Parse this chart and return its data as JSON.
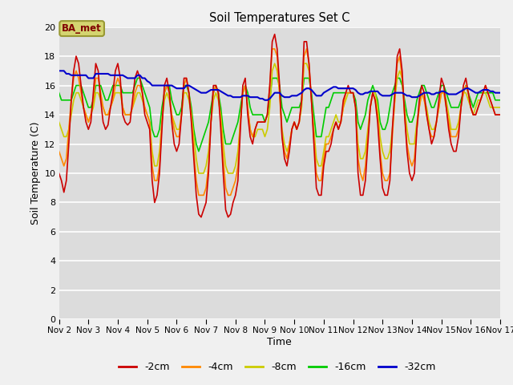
{
  "title": "Soil Temperatures Set C",
  "xlabel": "Time",
  "ylabel": "Soil Temperature (C)",
  "ylim": [
    0,
    20
  ],
  "yticks": [
    0,
    2,
    4,
    6,
    8,
    10,
    12,
    14,
    16,
    18,
    20
  ],
  "x_labels": [
    "Nov 2",
    "Nov 3",
    "Nov 4",
    "Nov 5",
    "Nov 6",
    "Nov 7",
    "Nov 8",
    "Nov 9",
    "Nov 10",
    "Nov 11",
    "Nov 12",
    "Nov 13",
    "Nov 14",
    "Nov 15",
    "Nov 16",
    "Nov 17"
  ],
  "annotation_text": "BA_met",
  "colors": {
    "-2cm": "#cc0000",
    "-4cm": "#ff8800",
    "-8cm": "#cccc00",
    "-16cm": "#00cc00",
    "-32cm": "#0000cc"
  },
  "figure_bg": "#f0f0f0",
  "axes_bg": "#dcdcdc",
  "grid_color": "#ffffff",
  "legend_labels": [
    "-2cm",
    "-4cm",
    "-8cm",
    "-16cm",
    "-32cm"
  ],
  "data": {
    "x": [
      2.0,
      2.083,
      2.167,
      2.25,
      2.333,
      2.417,
      2.5,
      2.583,
      2.667,
      2.75,
      2.833,
      2.917,
      3.0,
      3.083,
      3.167,
      3.25,
      3.333,
      3.417,
      3.5,
      3.583,
      3.667,
      3.75,
      3.833,
      3.917,
      4.0,
      4.083,
      4.167,
      4.25,
      4.333,
      4.417,
      4.5,
      4.583,
      4.667,
      4.75,
      4.833,
      4.917,
      5.0,
      5.083,
      5.167,
      5.25,
      5.333,
      5.417,
      5.5,
      5.583,
      5.667,
      5.75,
      5.833,
      5.917,
      6.0,
      6.083,
      6.167,
      6.25,
      6.333,
      6.417,
      6.5,
      6.583,
      6.667,
      6.75,
      6.833,
      6.917,
      7.0,
      7.083,
      7.167,
      7.25,
      7.333,
      7.417,
      7.5,
      7.583,
      7.667,
      7.75,
      7.833,
      7.917,
      8.0,
      8.083,
      8.167,
      8.25,
      8.333,
      8.417,
      8.5,
      8.583,
      8.667,
      8.75,
      8.833,
      8.917,
      9.0,
      9.083,
      9.167,
      9.25,
      9.333,
      9.417,
      9.5,
      9.583,
      9.667,
      9.75,
      9.833,
      9.917,
      10.0,
      10.083,
      10.167,
      10.25,
      10.333,
      10.417,
      10.5,
      10.583,
      10.667,
      10.75,
      10.833,
      10.917,
      11.0,
      11.083,
      11.167,
      11.25,
      11.333,
      11.417,
      11.5,
      11.583,
      11.667,
      11.75,
      11.833,
      11.917,
      12.0,
      12.083,
      12.167,
      12.25,
      12.333,
      12.417,
      12.5,
      12.583,
      12.667,
      12.75,
      12.833,
      12.917,
      13.0,
      13.083,
      13.167,
      13.25,
      13.333,
      13.417,
      13.5,
      13.583,
      13.667,
      13.75,
      13.833,
      13.917,
      14.0,
      14.083,
      14.167,
      14.25,
      14.333,
      14.417,
      14.5,
      14.583,
      14.667,
      14.75,
      14.833,
      14.917,
      15.0,
      15.083,
      15.167,
      15.25,
      15.333,
      15.417,
      15.5,
      15.583,
      15.667,
      15.75,
      15.833,
      15.917,
      16.0,
      16.083,
      16.167,
      16.25,
      16.333,
      16.417,
      16.5,
      16.583,
      16.667,
      16.75,
      16.833,
      16.917,
      17.0
    ],
    "d2cm": [
      10.0,
      9.5,
      8.7,
      9.5,
      12.0,
      15.0,
      17.0,
      18.0,
      17.5,
      16.0,
      14.5,
      13.5,
      13.0,
      13.5,
      15.5,
      17.5,
      17.0,
      15.0,
      13.5,
      13.0,
      13.3,
      14.5,
      15.5,
      17.0,
      17.5,
      16.5,
      14.0,
      13.5,
      13.3,
      13.5,
      15.0,
      16.5,
      17.0,
      16.5,
      15.5,
      14.0,
      13.5,
      13.0,
      9.5,
      8.0,
      8.5,
      10.0,
      13.0,
      16.0,
      16.5,
      15.5,
      13.5,
      12.0,
      11.5,
      12.0,
      14.0,
      16.5,
      16.5,
      15.5,
      13.5,
      11.0,
      8.5,
      7.2,
      7.0,
      7.5,
      8.0,
      10.0,
      13.5,
      16.0,
      16.0,
      15.5,
      13.0,
      10.0,
      7.5,
      7.0,
      7.2,
      8.0,
      8.5,
      9.5,
      13.0,
      16.0,
      16.5,
      14.0,
      12.5,
      12.0,
      13.0,
      13.5,
      13.5,
      13.5,
      13.5,
      14.0,
      16.0,
      19.0,
      19.5,
      18.5,
      16.0,
      12.5,
      11.0,
      10.5,
      11.5,
      13.0,
      13.5,
      13.0,
      13.5,
      15.0,
      19.0,
      19.0,
      17.5,
      15.0,
      12.0,
      9.0,
      8.5,
      8.5,
      10.5,
      11.5,
      11.5,
      12.0,
      13.0,
      13.5,
      13.0,
      13.5,
      15.0,
      15.5,
      16.0,
      15.5,
      15.5,
      14.5,
      10.0,
      8.5,
      8.5,
      9.5,
      12.0,
      14.5,
      15.5,
      15.0,
      13.5,
      11.0,
      9.0,
      8.5,
      8.5,
      9.5,
      13.0,
      15.5,
      18.0,
      18.5,
      17.0,
      14.0,
      11.5,
      10.0,
      9.5,
      10.0,
      13.0,
      15.0,
      16.0,
      15.5,
      14.0,
      13.0,
      12.0,
      12.5,
      13.5,
      15.0,
      16.5,
      16.0,
      14.5,
      13.0,
      12.0,
      11.5,
      11.5,
      12.5,
      14.5,
      16.0,
      16.5,
      15.5,
      14.5,
      14.0,
      14.0,
      14.5,
      15.0,
      15.5,
      16.0,
      15.5,
      15.0,
      14.5,
      14.0,
      14.0,
      14.0
    ],
    "d4cm": [
      11.5,
      11.0,
      10.5,
      11.0,
      13.0,
      15.0,
      16.5,
      17.0,
      16.5,
      15.5,
      14.5,
      14.0,
      13.5,
      14.0,
      15.0,
      16.5,
      16.5,
      15.5,
      14.5,
      14.0,
      14.0,
      14.5,
      15.0,
      16.0,
      16.5,
      16.0,
      14.5,
      14.0,
      14.0,
      14.0,
      14.5,
      15.5,
      16.0,
      16.0,
      15.5,
      14.5,
      14.0,
      13.5,
      10.5,
      9.5,
      9.5,
      10.5,
      13.5,
      15.5,
      16.0,
      15.5,
      14.0,
      13.0,
      12.5,
      12.5,
      14.0,
      16.0,
      16.5,
      15.5,
      14.0,
      11.5,
      9.5,
      8.5,
      8.5,
      8.5,
      9.0,
      10.5,
      13.5,
      15.5,
      16.0,
      15.5,
      13.5,
      11.0,
      9.0,
      8.5,
      8.5,
      9.0,
      9.5,
      10.5,
      13.5,
      15.5,
      16.0,
      14.5,
      13.0,
      12.5,
      13.0,
      13.5,
      13.5,
      13.5,
      13.5,
      14.0,
      16.0,
      18.5,
      18.5,
      18.0,
      15.5,
      12.5,
      11.5,
      11.0,
      12.0,
      13.0,
      13.5,
      13.0,
      13.5,
      15.0,
      18.0,
      18.5,
      17.5,
      15.0,
      12.5,
      10.0,
      9.5,
      9.5,
      11.0,
      12.0,
      12.0,
      12.5,
      13.0,
      13.5,
      13.0,
      13.5,
      14.5,
      15.5,
      15.5,
      15.5,
      15.5,
      14.5,
      11.0,
      10.0,
      9.5,
      10.5,
      12.5,
      14.5,
      15.5,
      15.0,
      14.0,
      11.5,
      10.0,
      9.5,
      9.5,
      10.0,
      12.5,
      15.0,
      17.5,
      18.0,
      16.5,
      14.0,
      12.0,
      11.0,
      10.5,
      11.0,
      13.0,
      14.5,
      15.5,
      15.0,
      14.0,
      13.0,
      12.5,
      12.5,
      13.5,
      14.5,
      15.5,
      15.5,
      14.5,
      13.5,
      12.5,
      12.5,
      12.5,
      13.0,
      14.5,
      15.5,
      16.0,
      15.5,
      14.5,
      14.0,
      14.0,
      14.5,
      15.0,
      15.5,
      16.0,
      15.5,
      15.0,
      14.5,
      14.0,
      14.0,
      14.0
    ],
    "d8cm": [
      13.5,
      13.0,
      12.5,
      12.5,
      13.0,
      14.0,
      15.0,
      15.5,
      15.5,
      15.0,
      14.5,
      14.0,
      13.5,
      14.0,
      14.5,
      15.5,
      15.5,
      15.0,
      14.5,
      14.0,
      14.0,
      14.5,
      15.0,
      15.5,
      15.5,
      15.5,
      14.5,
      14.0,
      14.0,
      14.0,
      14.5,
      15.0,
      15.5,
      15.5,
      15.0,
      14.5,
      14.0,
      13.5,
      11.5,
      10.5,
      10.5,
      11.5,
      13.5,
      15.0,
      15.5,
      15.0,
      14.0,
      13.5,
      13.0,
      13.0,
      14.0,
      15.5,
      15.5,
      15.0,
      14.0,
      12.5,
      11.0,
      10.0,
      10.0,
      10.0,
      10.5,
      11.5,
      13.5,
      15.0,
      15.5,
      15.0,
      14.0,
      12.0,
      10.5,
      10.0,
      10.0,
      10.0,
      10.5,
      11.5,
      13.5,
      15.5,
      16.0,
      14.5,
      13.0,
      12.5,
      12.5,
      13.0,
      13.0,
      13.0,
      12.5,
      13.0,
      14.5,
      17.0,
      17.5,
      17.0,
      15.5,
      13.0,
      12.0,
      11.5,
      12.0,
      13.0,
      13.5,
      13.0,
      13.5,
      14.5,
      17.5,
      17.5,
      17.0,
      15.0,
      13.0,
      11.0,
      10.5,
      10.5,
      11.5,
      12.5,
      12.5,
      13.0,
      13.5,
      14.0,
      13.5,
      13.5,
      14.5,
      15.0,
      15.5,
      15.5,
      15.5,
      14.5,
      12.0,
      11.0,
      11.0,
      11.5,
      13.0,
      14.5,
      15.5,
      15.5,
      14.5,
      12.5,
      11.5,
      11.0,
      11.0,
      11.5,
      13.0,
      15.0,
      16.5,
      17.0,
      16.5,
      14.5,
      13.0,
      12.0,
      12.0,
      12.0,
      13.5,
      14.5,
      15.5,
      15.0,
      14.5,
      13.5,
      13.0,
      13.0,
      13.5,
      14.5,
      15.5,
      15.5,
      15.0,
      14.0,
      13.0,
      13.0,
      13.0,
      13.5,
      14.5,
      15.5,
      15.5,
      15.0,
      14.5,
      14.0,
      14.5,
      15.0,
      15.0,
      15.5,
      15.5,
      15.0,
      14.5,
      14.5,
      14.5,
      14.5,
      14.5
    ],
    "d16cm": [
      15.5,
      15.0,
      15.0,
      15.0,
      15.0,
      15.0,
      15.5,
      16.0,
      16.0,
      16.0,
      15.5,
      15.0,
      14.5,
      14.5,
      15.0,
      16.0,
      16.0,
      16.0,
      15.5,
      15.0,
      15.0,
      15.5,
      16.0,
      16.0,
      16.0,
      16.0,
      15.5,
      15.5,
      15.5,
      15.5,
      15.5,
      16.0,
      16.5,
      16.5,
      16.0,
      15.5,
      15.0,
      14.5,
      13.0,
      12.5,
      12.5,
      13.0,
      14.5,
      15.5,
      16.0,
      16.0,
      15.0,
      14.5,
      14.0,
      14.0,
      14.5,
      16.0,
      16.0,
      15.5,
      14.5,
      13.0,
      12.0,
      11.5,
      12.0,
      12.5,
      13.0,
      13.5,
      14.5,
      15.5,
      16.0,
      15.5,
      14.5,
      13.0,
      12.0,
      12.0,
      12.0,
      12.5,
      13.0,
      13.5,
      14.5,
      15.5,
      16.0,
      15.5,
      14.5,
      14.0,
      14.0,
      14.0,
      14.0,
      14.0,
      13.5,
      14.0,
      15.0,
      16.5,
      16.5,
      16.5,
      16.0,
      14.5,
      14.0,
      13.5,
      14.0,
      14.5,
      14.5,
      14.5,
      14.5,
      15.0,
      16.5,
      16.5,
      16.5,
      15.5,
      14.0,
      12.5,
      12.5,
      12.5,
      13.5,
      14.5,
      14.5,
      15.0,
      15.5,
      15.5,
      15.5,
      15.5,
      15.5,
      15.5,
      15.5,
      15.5,
      15.5,
      15.0,
      13.5,
      13.0,
      13.5,
      14.0,
      15.0,
      15.5,
      16.0,
      15.5,
      15.0,
      13.5,
      13.0,
      13.0,
      13.5,
      14.5,
      15.5,
      16.0,
      16.5,
      16.5,
      16.0,
      15.0,
      14.0,
      13.5,
      13.5,
      14.0,
      15.0,
      15.5,
      16.0,
      16.0,
      15.5,
      15.0,
      14.5,
      14.5,
      15.0,
      15.5,
      16.0,
      16.0,
      15.5,
      15.0,
      14.5,
      14.5,
      14.5,
      14.5,
      15.0,
      15.5,
      16.0,
      15.5,
      15.0,
      14.5,
      15.0,
      15.5,
      15.5,
      15.5,
      15.5,
      15.5,
      15.5,
      15.5,
      15.0,
      15.0,
      15.0
    ],
    "d32cm": [
      17.0,
      17.0,
      17.0,
      16.8,
      16.8,
      16.7,
      16.7,
      16.7,
      16.7,
      16.7,
      16.7,
      16.7,
      16.5,
      16.5,
      16.5,
      16.8,
      16.8,
      16.8,
      16.8,
      16.8,
      16.8,
      16.7,
      16.7,
      16.7,
      16.7,
      16.7,
      16.7,
      16.6,
      16.5,
      16.5,
      16.5,
      16.5,
      16.7,
      16.7,
      16.5,
      16.5,
      16.3,
      16.2,
      16.0,
      16.0,
      16.0,
      16.0,
      16.0,
      16.0,
      16.0,
      16.0,
      16.0,
      15.9,
      15.8,
      15.8,
      15.8,
      15.8,
      16.0,
      16.0,
      15.9,
      15.8,
      15.7,
      15.6,
      15.5,
      15.5,
      15.5,
      15.6,
      15.7,
      15.7,
      15.7,
      15.7,
      15.6,
      15.5,
      15.4,
      15.3,
      15.3,
      15.2,
      15.2,
      15.2,
      15.2,
      15.3,
      15.3,
      15.3,
      15.2,
      15.2,
      15.2,
      15.2,
      15.1,
      15.1,
      15.0,
      15.0,
      15.1,
      15.3,
      15.5,
      15.5,
      15.5,
      15.3,
      15.2,
      15.2,
      15.2,
      15.3,
      15.3,
      15.3,
      15.4,
      15.5,
      15.7,
      15.8,
      15.8,
      15.7,
      15.5,
      15.3,
      15.3,
      15.3,
      15.5,
      15.6,
      15.7,
      15.8,
      15.9,
      15.9,
      15.8,
      15.8,
      15.8,
      15.8,
      15.8,
      15.8,
      15.8,
      15.7,
      15.5,
      15.4,
      15.4,
      15.5,
      15.5,
      15.6,
      15.6,
      15.6,
      15.6,
      15.4,
      15.3,
      15.3,
      15.3,
      15.3,
      15.4,
      15.5,
      15.5,
      15.5,
      15.5,
      15.4,
      15.3,
      15.3,
      15.2,
      15.2,
      15.2,
      15.3,
      15.4,
      15.5,
      15.5,
      15.5,
      15.4,
      15.4,
      15.5,
      15.5,
      15.6,
      15.6,
      15.5,
      15.4,
      15.4,
      15.4,
      15.4,
      15.5,
      15.6,
      15.7,
      15.8,
      15.8,
      15.7,
      15.6,
      15.5,
      15.5,
      15.6,
      15.7,
      15.7,
      15.7,
      15.6,
      15.6,
      15.5,
      15.5,
      15.5
    ]
  }
}
